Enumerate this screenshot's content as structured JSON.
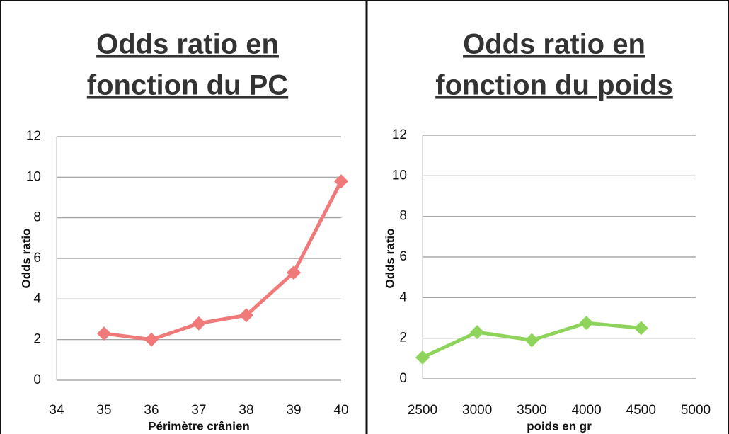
{
  "chart_data": [
    {
      "type": "line",
      "title": [
        "Odds ratio en",
        "fonction du PC"
      ],
      "xlabel": "Périmètre crânien",
      "ylabel": "Odds ratio",
      "x": [
        35,
        36,
        37,
        38,
        39,
        40
      ],
      "series": [
        {
          "color": "#f07a7a",
          "values": [
            2.3,
            2.0,
            2.8,
            3.2,
            5.3,
            9.8
          ]
        }
      ],
      "xlim": [
        34,
        40
      ],
      "xticks": [
        34,
        35,
        36,
        37,
        38,
        39,
        40
      ],
      "ylim": [
        0,
        12
      ],
      "yticks": [
        0,
        2,
        4,
        6,
        8,
        10,
        12
      ],
      "grid": true
    },
    {
      "type": "line",
      "title": [
        "Odds ratio en",
        "fonction du poids"
      ],
      "xlabel": "poids en gr",
      "ylabel": "Odds ratio",
      "x": [
        2500,
        3000,
        3500,
        4000,
        4500
      ],
      "series": [
        {
          "color": "#8fd45a",
          "values": [
            1.05,
            2.3,
            1.9,
            2.75,
            2.5
          ]
        }
      ],
      "xlim": [
        2500,
        5000
      ],
      "xticks": [
        2500,
        3000,
        3500,
        4000,
        4500,
        5000
      ],
      "ylim": [
        0,
        12
      ],
      "yticks": [
        0,
        2,
        4,
        6,
        8,
        10,
        12
      ],
      "grid": true
    }
  ]
}
